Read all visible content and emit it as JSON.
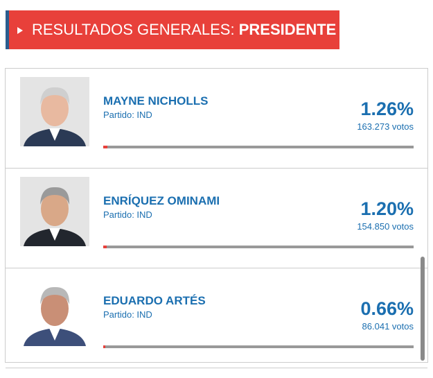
{
  "header": {
    "title_prefix": "RESULTADOS GENERALES:",
    "title_strong": "PRESIDENTE"
  },
  "candidates": [
    {
      "name": "MAYNE NICHOLLS",
      "party": "Partido: IND",
      "percent": {
        "value": 1.26,
        "label": "1.26%"
      },
      "votes": "163.273 votos"
    },
    {
      "name": "ENRÍQUEZ OMINAMI",
      "party": "Partido: IND",
      "percent": {
        "value": 1.2,
        "label": "1.20%"
      },
      "votes": "154.850 votos"
    },
    {
      "name": "EDUARDO ARTÉS",
      "party": "Partido: IND",
      "percent": {
        "value": 0.66,
        "label": "0.66%"
      },
      "votes": "86.041 votos"
    }
  ]
}
